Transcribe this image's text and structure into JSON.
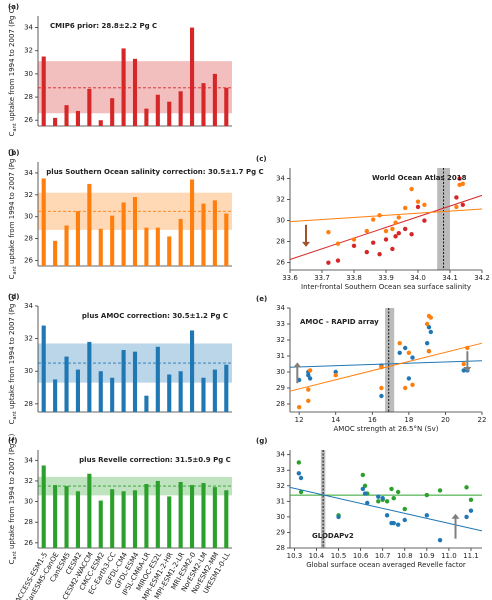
{
  "chart_data": [
    {
      "type": "bar",
      "panel_label": "(a)",
      "title": "CMIP6 prior: 28.8±2.2 Pg C",
      "y_label_symbol": "C",
      "y_label_sub": "ant",
      "y_label": " uptake from 1994 to 2007 (Pg C)",
      "values": [
        31.5,
        26.2,
        27.3,
        26.8,
        28.7,
        26.0,
        27.9,
        32.2,
        31.3,
        27.0,
        28.2,
        27.6,
        28.5,
        34.0,
        29.2,
        30.0,
        28.8
      ],
      "color": "#d62728",
      "band": [
        26.6,
        31.1
      ],
      "mean": 28.8,
      "ylim": [
        25.5,
        35
      ],
      "yticks": [
        26,
        28,
        30,
        32,
        34
      ]
    },
    {
      "type": "bar",
      "panel_label": "(b)",
      "title": "plus Southern Ocean salinity correction: 30.5±1.7 Pg C",
      "y_label_symbol": "C",
      "y_label_sub": "ant",
      "y_label": " uptake from 1994 to 2007 (Pg C)",
      "values": [
        33.5,
        27.8,
        29.2,
        30.5,
        33.0,
        28.9,
        30.1,
        31.3,
        31.8,
        29.0,
        29.0,
        28.2,
        29.8,
        33.4,
        31.2,
        31.5,
        30.3
      ],
      "color": "#ff7f0e",
      "band": [
        28.8,
        32.2
      ],
      "mean": 30.5,
      "ylim": [
        25.5,
        35
      ],
      "yticks": [
        26,
        28,
        30,
        32,
        34
      ]
    },
    {
      "type": "scatter",
      "panel_label": "(c)",
      "annotation": "World Ocean Atlas 2018",
      "x_label": "Inter-frontal Southern Ocean sea surface salinity",
      "x": [
        34.14,
        33.75,
        33.92,
        33.88,
        33.98,
        33.72,
        33.86,
        34.12,
        34.0,
        33.84,
        33.9,
        33.8,
        33.93,
        34.13,
        33.96,
        34.02,
        33.94
      ],
      "series": [
        {
          "color": "#d62728",
          "values": [
            31.5,
            26.2,
            27.3,
            26.8,
            28.7,
            26.0,
            27.9,
            32.2,
            31.3,
            27.0,
            28.2,
            27.6,
            28.5,
            34.0,
            29.2,
            30.0,
            28.8
          ],
          "fit": [
            26.3,
            32.4
          ]
        },
        {
          "color": "#ff7f0e",
          "values": [
            33.5,
            27.8,
            29.2,
            30.5,
            33.0,
            28.9,
            30.1,
            31.3,
            31.8,
            29.0,
            29.0,
            28.2,
            29.8,
            33.4,
            31.2,
            31.5,
            30.3
          ],
          "fit": [
            29.9,
            31.1
          ]
        }
      ],
      "obs_x": 34.08,
      "obs_band": [
        34.06,
        34.1
      ],
      "arrows": [
        {
          "x": 33.65,
          "y": [
            29.6,
            27.5
          ],
          "color": "#a0522d"
        }
      ],
      "xlim": [
        33.6,
        34.2
      ],
      "xticks": [
        33.6,
        33.7,
        33.8,
        33.9,
        {
          "value": 34,
          "label": "34.0"
        },
        34.1,
        34.2
      ],
      "ylim": [
        25.3,
        35
      ],
      "yticks": [
        26,
        28,
        30,
        32,
        34
      ]
    },
    {
      "type": "bar",
      "panel_label": "(d)",
      "title": "plus AMOC correction: 30.5±1.2 Pg C",
      "y_label_symbol": "C",
      "y_label_sub": "ant",
      "y_label": " uptake from 1994 to 2007 (Pg C)",
      "values": [
        32.8,
        29.5,
        30.9,
        30.1,
        31.8,
        30.0,
        29.6,
        31.3,
        31.2,
        28.5,
        31.5,
        29.8,
        30.0,
        32.5,
        29.6,
        30.1,
        30.4
      ],
      "color": "#1f77b4",
      "band": [
        29.3,
        31.7
      ],
      "mean": 30.5,
      "ylim": [
        27.5,
        34
      ],
      "yticks": [
        28,
        30,
        32,
        34
      ]
    },
    {
      "type": "scatter",
      "panel_label": "(e)",
      "annotation": "AMOC - RAPID array",
      "x_label": "AMOC strength at 26.5°N (Sv)",
      "x": [
        19.1,
        12.0,
        18.2,
        21.0,
        19.0,
        12.5,
        12.6,
        19.1,
        17.5,
        16.5,
        17.8,
        12.5,
        14.0,
        19.2,
        18.0,
        21.2,
        16.5
      ],
      "series": [
        {
          "color": "#1f77b4",
          "values": [
            32.8,
            29.5,
            30.9,
            30.1,
            31.8,
            30.0,
            29.6,
            31.3,
            31.2,
            28.5,
            31.5,
            29.8,
            30.0,
            32.5,
            29.6,
            30.1,
            30.4
          ],
          "fit": [
            30.3,
            30.7
          ]
        },
        {
          "color": "#ff7f0e",
          "values": [
            33.5,
            27.8,
            29.2,
            30.5,
            33.0,
            28.9,
            30.1,
            31.3,
            31.8,
            29.0,
            29.0,
            28.2,
            29.8,
            33.4,
            31.2,
            31.5,
            30.3
          ],
          "fit": [
            28.8,
            31.8
          ]
        }
      ],
      "obs_x": 16.9,
      "obs_band": [
        16.7,
        17.2
      ],
      "arrows": [
        {
          "x": 11.9,
          "y": [
            29.3,
            30.6
          ],
          "color": "#808080"
        },
        {
          "x": 21.2,
          "y": [
            31.3,
            30.0
          ],
          "color": "#808080"
        }
      ],
      "xlim": [
        11.5,
        22
      ],
      "xticks": [
        12,
        14,
        16,
        18,
        20,
        22
      ],
      "ylim": [
        27.5,
        34
      ],
      "yticks": [
        28,
        29,
        30,
        31,
        32,
        33,
        34
      ]
    },
    {
      "type": "bar",
      "panel_label": "(f)",
      "title": "plus Revelle correction: 31.5±0.9 Pg C",
      "y_label_symbol": "C",
      "y_label_sub": "ant",
      "y_label": " uptake from 1994 to 2007 (Pg C)",
      "categories": [
        "ACCESS-ESM1-5",
        "CanESM5-CanOE",
        "CanESM5",
        "CESM2",
        "CESM2-WACCM",
        "CMCC-ESM2",
        "EC-Earth3-CC",
        "GFDL-CM4",
        "GFDL-ESM4",
        "IPSL-CM6A-LR",
        "MIROC-ES2L",
        "MPI-ESM1-2-HR",
        "MPI-ESM1-2-LR",
        "MRI-ESM2-0",
        "NorESM2-LM",
        "NorESM2-MM",
        "UKESM1-0-LL"
      ],
      "values": [
        33.5,
        31.6,
        31.5,
        31.0,
        32.7,
        30.1,
        31.2,
        31.0,
        31.1,
        31.7,
        32.0,
        30.5,
        31.9,
        31.6,
        31.8,
        31.4,
        31.1
      ],
      "color": "#2ca02c",
      "band": [
        30.6,
        32.4
      ],
      "mean": 31.5,
      "ylim": [
        25.5,
        35
      ],
      "yticks": [
        26,
        28,
        30,
        32,
        34
      ]
    },
    {
      "type": "scatter",
      "panel_label": "(g)",
      "annotation": "GLODAPv2",
      "x_label": "Global surface ocean averaged Revelle factor",
      "x": [
        10.32,
        10.77,
        10.63,
        10.72,
        10.61,
        10.5,
        10.75,
        10.68,
        10.7,
        10.96,
        10.62,
        10.8,
        11.08,
        10.33,
        10.74,
        10.9,
        11.1
      ],
      "series": [
        {
          "color": "#2ca02c",
          "values": [
            33.5,
            31.6,
            31.5,
            31.0,
            32.7,
            30.1,
            31.2,
            31.0,
            31.1,
            31.7,
            32.0,
            30.5,
            31.9,
            31.6,
            31.8,
            31.4,
            31.1
          ],
          "fit": [
            31.4,
            31.4
          ]
        },
        {
          "color": "#1f77b4",
          "values": [
            32.8,
            29.5,
            30.9,
            30.1,
            31.8,
            30.0,
            29.6,
            31.3,
            31.2,
            28.5,
            31.5,
            29.8,
            30.0,
            32.5,
            29.6,
            30.1,
            30.4
          ],
          "fit": [
            31.9,
            29.1
          ]
        }
      ],
      "obs_x": 10.43,
      "obs_band": [
        10.42,
        10.44
      ],
      "arrows": [
        {
          "x": 11.03,
          "y": [
            28.6,
            30.2
          ],
          "color": "#808080"
        }
      ],
      "xlim": [
        10.28,
        11.15
      ],
      "xticks": [
        10.3,
        10.4,
        10.5,
        10.6,
        10.7,
        10.8,
        10.9,
        {
          "value": 11,
          "label": "11.0"
        },
        11.1
      ],
      "ylim": [
        28,
        34.3
      ],
      "yticks": [
        28,
        29,
        30,
        31,
        32,
        33,
        34
      ]
    }
  ]
}
